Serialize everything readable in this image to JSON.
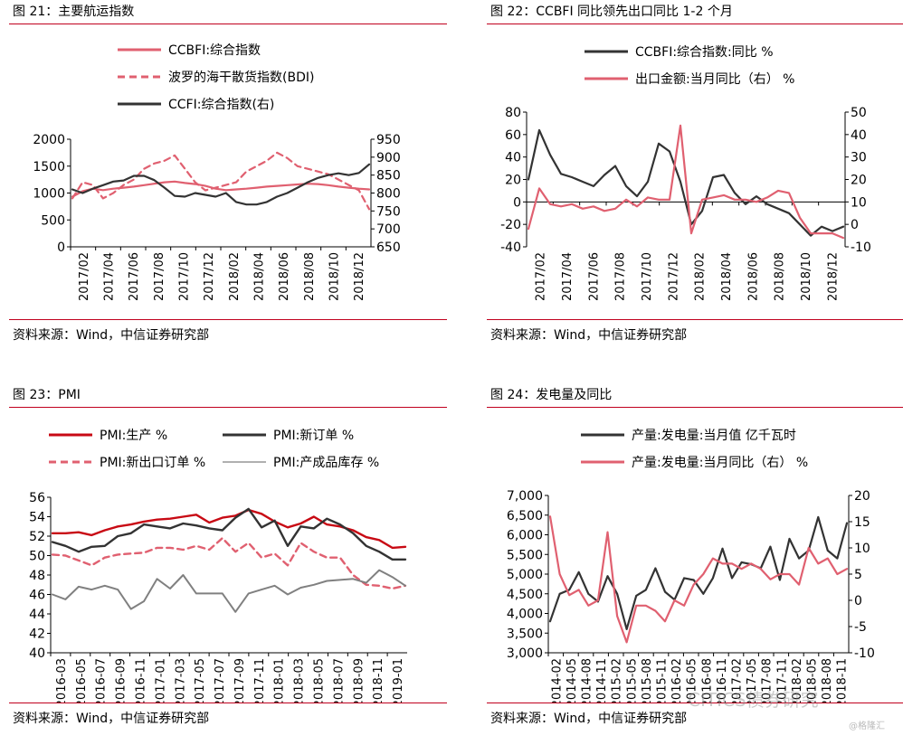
{
  "panels": [
    {
      "title": "图 21：主要航运指数",
      "source": "资料来源：Wind，中信证券研究部",
      "chart_data": {
        "type": "line",
        "x_ticks": [
          "2017/02",
          "2017/04",
          "2017/06",
          "2017/08",
          "2017/10",
          "2017/12",
          "2018/02",
          "2018/04",
          "2018/06",
          "2018/08",
          "2018/10",
          "2018/12"
        ],
        "y_left": {
          "min": 0,
          "max": 2000,
          "ticks": [
            "0",
            "500",
            "1000",
            "1500",
            "2000"
          ]
        },
        "y_right": {
          "min": 650,
          "max": 950,
          "ticks": [
            "650",
            "700",
            "750",
            "800",
            "850",
            "900",
            "950"
          ]
        },
        "series": [
          {
            "name": "CCBFI:综合指数",
            "axis": "right",
            "color": "#e06070",
            "dash": false,
            "values": [
              790,
              805,
              812,
              808,
              812,
              815,
              818,
              822,
              826,
              830,
              832,
              828,
              825,
              820,
              812,
              808,
              810,
              812,
              815,
              818,
              820,
              822,
              824,
              826,
              825,
              822,
              818,
              815,
              812,
              810
            ]
          },
          {
            "name": "波罗的海干散货指数(BDI)",
            "axis": "left",
            "color": "#e06070",
            "dash": true,
            "values": [
              900,
              1200,
              1150,
              900,
              1000,
              1150,
              1250,
              1450,
              1550,
              1600,
              1700,
              1450,
              1200,
              1050,
              1100,
              1150,
              1200,
              1400,
              1500,
              1600,
              1750,
              1650,
              1500,
              1450,
              1400,
              1350,
              1250,
              1150,
              1050,
              700
            ]
          },
          {
            "name": "CCFI:综合指数(右)",
            "axis": "right",
            "color": "#333333",
            "dash": false,
            "values": [
              810,
              800,
              812,
              822,
              832,
              835,
              848,
              848,
              836,
              815,
              792,
              790,
              800,
              795,
              790,
              800,
              775,
              768,
              768,
              775,
              790,
              800,
              815,
              830,
              842,
              850,
              855,
              850,
              856,
              880
            ]
          }
        ]
      }
    },
    {
      "title": "图 22：CCBFI 同比领先出口同比 1-2 个月",
      "source": "资料来源：Wind，中信证券研究部",
      "chart_data": {
        "type": "line",
        "x_ticks": [
          "2017/02",
          "2017/04",
          "2017/06",
          "2017/08",
          "2017/10",
          "2017/12",
          "2018/02",
          "2018/04",
          "2018/06",
          "2018/08",
          "2018/10",
          "2018/12"
        ],
        "y_left": {
          "min": -40,
          "max": 80,
          "ticks": [
            "-40",
            "-20",
            "0",
            "20",
            "40",
            "60",
            "80"
          ]
        },
        "y_right": {
          "min": -10,
          "max": 50,
          "ticks": [
            "-10",
            "0",
            "10",
            "20",
            "30",
            "40",
            "50"
          ]
        },
        "series": [
          {
            "name": "CCBFI:综合指数:同比 %",
            "axis": "left",
            "color": "#333333",
            "dash": false,
            "values": [
              20,
              64,
              42,
              25,
              22,
              18,
              14,
              24,
              32,
              14,
              5,
              18,
              52,
              45,
              18,
              -20,
              -8,
              22,
              24,
              8,
              -2,
              5,
              -2,
              -6,
              -10,
              -20,
              -30,
              -22,
              -26,
              -22
            ]
          },
          {
            "name": "出口金额:当月同比（右） %",
            "axis": "right",
            "color": "#e06070",
            "dash": false,
            "values": [
              -2,
              16,
              9,
              8,
              9,
              7,
              8,
              6,
              7,
              11,
              8,
              12,
              11,
              11,
              44,
              -4,
              11,
              12,
              13,
              11,
              11,
              10,
              12,
              15,
              14,
              3,
              -4,
              -4,
              -4,
              -6
            ]
          }
        ]
      }
    },
    {
      "title": "图 23：PMI",
      "source": "资料来源：Wind，中信证券研究部",
      "chart_data": {
        "type": "line",
        "x_ticks": [
          "2016-03",
          "2016-05",
          "2016-07",
          "2016-09",
          "2016-11",
          "2017-01",
          "2017-03",
          "2017-05",
          "2017-07",
          "2017-09",
          "2017-11",
          "2018-01",
          "2018-03",
          "2018-05",
          "2018-07",
          "2018-09",
          "2018-11",
          "2019-01"
        ],
        "y_left": {
          "min": 40,
          "max": 56,
          "ticks": [
            "40",
            "42",
            "44",
            "46",
            "48",
            "50",
            "52",
            "54",
            "56"
          ]
        },
        "series": [
          {
            "name": "PMI:生产 %",
            "color": "#c80a14",
            "dash": false,
            "width": 2.4,
            "values": [
              52.3,
              52.3,
              52.4,
              52.1,
              52.6,
              53.0,
              53.2,
              53.5,
              53.7,
              53.8,
              54.0,
              54.2,
              53.4,
              53.9,
              54.1,
              54.7,
              54.3,
              53.5,
              52.9,
              53.3,
              54.0,
              53.2,
              53.0,
              52.6,
              51.9,
              51.6,
              50.8,
              50.9
            ]
          },
          {
            "name": "PMI:新订单 %",
            "color": "#333333",
            "dash": false,
            "width": 2.4,
            "values": [
              51.4,
              51.0,
              50.4,
              50.9,
              51.0,
              52.0,
              52.3,
              53.2,
              53.0,
              52.8,
              53.3,
              53.1,
              52.8,
              52.6,
              53.9,
              54.8,
              52.9,
              53.6,
              51.0,
              53.0,
              52.8,
              53.8,
              53.2,
              52.3,
              51.0,
              50.4,
              49.6,
              49.6
            ]
          },
          {
            "name": "PMI:新出口订单 %",
            "color": "#e06070",
            "dash": true,
            "width": 2.4,
            "values": [
              50.1,
              50.0,
              49.5,
              49.0,
              49.8,
              50.1,
              50.2,
              50.3,
              50.8,
              50.8,
              50.6,
              51.0,
              50.6,
              51.8,
              50.4,
              51.3,
              49.8,
              50.2,
              49.0,
              51.3,
              50.4,
              49.8,
              49.8,
              48.0,
              47.0,
              46.9,
              46.6,
              46.9
            ]
          },
          {
            "name": "PMI:产成品库存 %",
            "color": "#808080",
            "dash": false,
            "width": 2.0,
            "values": [
              46.0,
              45.5,
              46.8,
              46.5,
              46.9,
              46.5,
              44.5,
              45.3,
              47.6,
              46.6,
              48.0,
              46.1,
              46.1,
              46.1,
              44.2,
              46.1,
              46.5,
              46.9,
              46.0,
              46.7,
              47.0,
              47.4,
              47.5,
              47.6,
              47.2,
              48.5,
              47.8,
              46.9
            ]
          }
        ]
      }
    },
    {
      "title": "图 24：发电量及同比",
      "source": "资料来源：Wind，中信证券研究部",
      "chart_data": {
        "type": "line",
        "x_ticks": [
          "2014-02",
          "2014-05",
          "2014-08",
          "2014-11",
          "2015-02",
          "2015-05",
          "2015-08",
          "2015-11",
          "2016-02",
          "2016-05",
          "2016-08",
          "2016-11",
          "2017-02",
          "2017-05",
          "2017-08",
          "2017-11",
          "2018-02",
          "2018-05",
          "2018-08",
          "2018-11"
        ],
        "y_left": {
          "min": 3000,
          "max": 7000,
          "ticks": [
            "3,000",
            "3,500",
            "4,000",
            "4,500",
            "5,000",
            "5,500",
            "6,000",
            "6,500",
            "7,000"
          ]
        },
        "y_right": {
          "min": -10,
          "max": 20,
          "ticks": [
            "-10",
            "-5",
            "0",
            "5",
            "10",
            "15",
            "20"
          ]
        },
        "series": [
          {
            "name": "产量:发电量:当月值 亿千瓦时",
            "axis": "left",
            "color": "#333333",
            "dash": false,
            "values": [
              3800,
              4500,
              4600,
              5050,
              4500,
              4300,
              4950,
              4500,
              3600,
              4450,
              4600,
              5150,
              4550,
              4350,
              4900,
              4850,
              4500,
              4900,
              5650,
              4900,
              5300,
              5250,
              5150,
              5700,
              4850,
              5900,
              5400,
              5600,
              6450,
              5600,
              5400,
              6300
            ]
          },
          {
            "name": "产量:发电量:当月同比（右） %",
            "axis": "right",
            "color": "#e06070",
            "dash": false,
            "values": [
              16,
              5,
              1,
              2,
              -1,
              0,
              13,
              -3,
              -8,
              -1,
              -1,
              -2,
              -4,
              0,
              -1,
              3,
              5,
              8,
              7,
              7,
              6,
              7,
              6,
              4,
              5,
              5,
              3,
              10,
              7,
              8,
              5,
              6
            ]
          }
        ]
      }
    }
  ],
  "legends": {
    "p0": [
      "CCBFI:综合指数",
      "波罗的海干散货指数(BDI)",
      "CCFI:综合指数(右)"
    ],
    "p1": [
      "CCBFI:综合指数:同比 %",
      "出口金额:当月同比（右） %"
    ],
    "p2": [
      "PMI:生产 %",
      "PMI:新订单 %",
      "PMI:新出口订单 %",
      "PMI:产成品库存 %"
    ],
    "p3": [
      "产量:发电量:当月值 亿千瓦时",
      "产量:发电量:当月同比（右） %"
    ]
  },
  "watermark": {
    "main": "CITICS债券研究",
    "handle": "@格隆汇"
  }
}
